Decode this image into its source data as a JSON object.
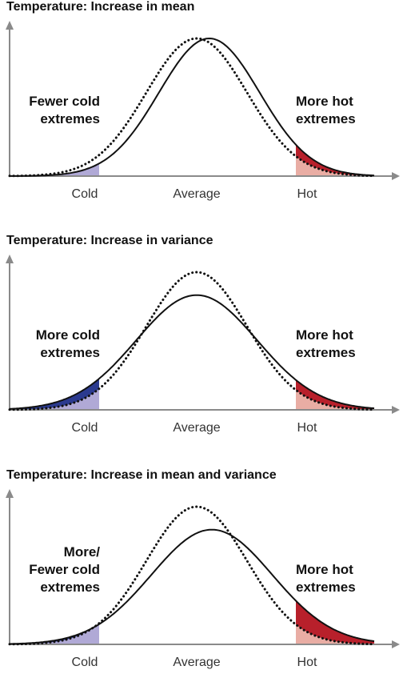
{
  "colors": {
    "cold_dark": "#2b3a8f",
    "cold_light": "#b0a9d6",
    "hot_dark": "#b8202b",
    "hot_light": "#e9ada4",
    "axis": "#8a8a8a",
    "curve": "#111111"
  },
  "panels": [
    {
      "title": "Temperature: Increase in mean",
      "left_annotation": [
        "Fewer cold",
        "extremes"
      ],
      "right_annotation": [
        "More hot",
        "extremes"
      ],
      "ticks": [
        "Cold",
        "Average",
        "Hot"
      ],
      "cold_tail": "light",
      "hot_tail": "dark_over_light",
      "chart_data": {
        "type": "area",
        "series": [
          {
            "role": "previous",
            "style": "dotted",
            "mu": 0.0,
            "sigma": 1.0
          },
          {
            "role": "new",
            "style": "solid",
            "mu": 0.25,
            "sigma": 1.0
          }
        ]
      }
    },
    {
      "title": "Temperature: Increase in variance",
      "left_annotation": [
        "More cold",
        "extremes"
      ],
      "right_annotation": [
        "More hot",
        "extremes"
      ],
      "ticks": [
        "Cold",
        "Average",
        "Hot"
      ],
      "cold_tail": "dark_over_light",
      "hot_tail": "dark_over_light",
      "chart_data": {
        "type": "area",
        "series": [
          {
            "role": "previous",
            "style": "dotted",
            "mu": 0.0,
            "sigma": 1.0
          },
          {
            "role": "new",
            "style": "solid",
            "mu": 0.0,
            "sigma": 1.2
          }
        ]
      }
    },
    {
      "title": "Temperature: Increase in mean and variance",
      "left_annotation": [
        "More/",
        "Fewer cold",
        "extremes"
      ],
      "right_annotation": [
        "More hot",
        "extremes"
      ],
      "ticks": [
        "Cold",
        "Average",
        "Hot"
      ],
      "cold_tail": "dark_over_light",
      "hot_tail": "dark_over_light",
      "chart_data": {
        "type": "area",
        "series": [
          {
            "role": "previous",
            "style": "dotted",
            "mu": 0.0,
            "sigma": 1.0
          },
          {
            "role": "new",
            "style": "solid",
            "mu": 0.3,
            "sigma": 1.2
          }
        ]
      }
    }
  ]
}
